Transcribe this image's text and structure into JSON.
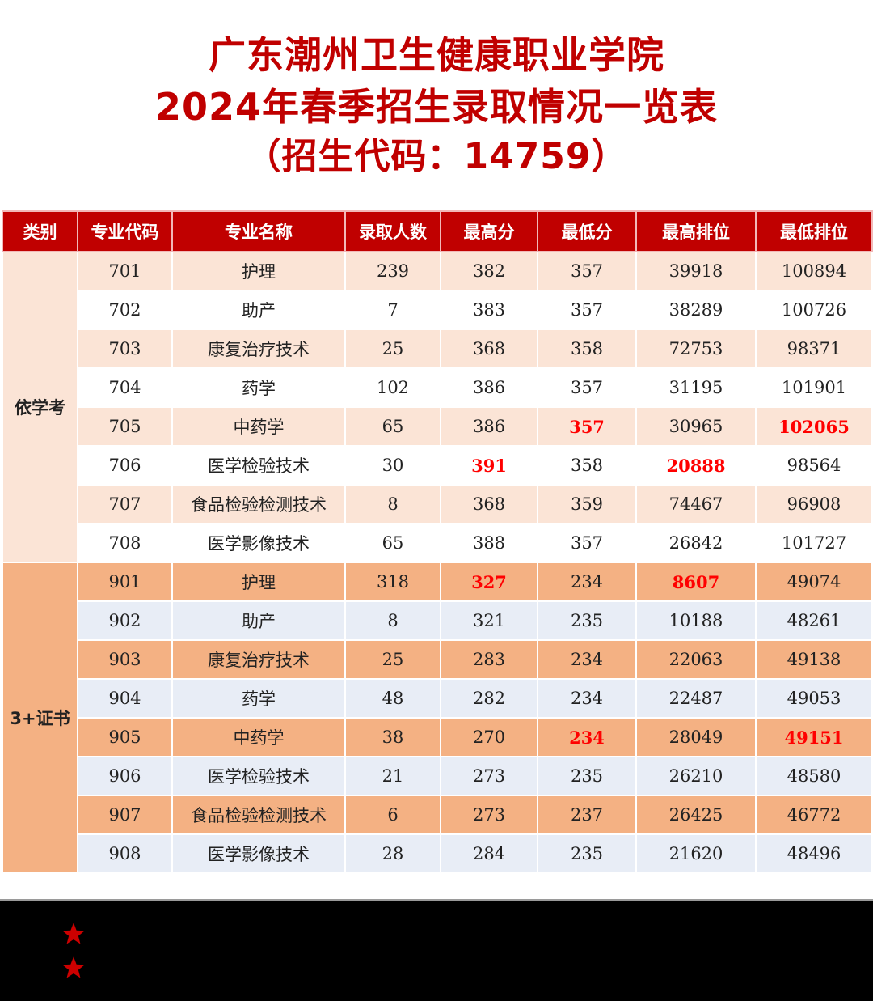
{
  "title": {
    "line1": "广东潮州卫生健康职业学院",
    "line2": "2024年春季招生录取情况一览表",
    "line3": "（招生代码：14759）"
  },
  "colors": {
    "title_red": "#c00000",
    "header_bg": "#c00000",
    "group1_odd": "#fbe4d6",
    "group1_even": "#ffffff",
    "group2_odd": "#f4b183",
    "group2_even": "#e8edf6",
    "highlight": "#ff0000",
    "footer_bg": "#000000",
    "star": "#cc0000"
  },
  "table": {
    "headers": [
      "类别",
      "专业代码",
      "专业名称",
      "录取人数",
      "最高分",
      "最低分",
      "最高排位",
      "最低排位"
    ],
    "groups": [
      {
        "category": "依学考",
        "rows": [
          {
            "code": "701",
            "name": "护理",
            "admitted": "239",
            "max_score": "382",
            "min_score": "357",
            "max_rank": "39918",
            "min_rank": "100894"
          },
          {
            "code": "702",
            "name": "助产",
            "admitted": "7",
            "max_score": "383",
            "min_score": "357",
            "max_rank": "38289",
            "min_rank": "100726"
          },
          {
            "code": "703",
            "name": "康复治疗技术",
            "admitted": "25",
            "max_score": "368",
            "min_score": "358",
            "max_rank": "72753",
            "min_rank": "98371"
          },
          {
            "code": "704",
            "name": "药学",
            "admitted": "102",
            "max_score": "386",
            "min_score": "357",
            "max_rank": "31195",
            "min_rank": "101901"
          },
          {
            "code": "705",
            "name": "中药学",
            "admitted": "65",
            "max_score": "386",
            "min_score": "357",
            "max_rank": "30965",
            "min_rank": "102065"
          },
          {
            "code": "706",
            "name": "医学检验技术",
            "admitted": "30",
            "max_score": "391",
            "min_score": "358",
            "max_rank": "20888",
            "min_rank": "98564"
          },
          {
            "code": "707",
            "name": "食品检验检测技术",
            "admitted": "8",
            "max_score": "368",
            "min_score": "359",
            "max_rank": "74467",
            "min_rank": "96908"
          },
          {
            "code": "708",
            "name": "医学影像技术",
            "admitted": "65",
            "max_score": "388",
            "min_score": "357",
            "max_rank": "26842",
            "min_rank": "101727"
          }
        ]
      },
      {
        "category": "3+证书",
        "rows": [
          {
            "code": "901",
            "name": "护理",
            "admitted": "318",
            "max_score": "327",
            "min_score": "234",
            "max_rank": "8607",
            "min_rank": "49074"
          },
          {
            "code": "902",
            "name": "助产",
            "admitted": "8",
            "max_score": "321",
            "min_score": "235",
            "max_rank": "10188",
            "min_rank": "48261"
          },
          {
            "code": "903",
            "name": "康复治疗技术",
            "admitted": "25",
            "max_score": "283",
            "min_score": "234",
            "max_rank": "22063",
            "min_rank": "49138"
          },
          {
            "code": "904",
            "name": "药学",
            "admitted": "48",
            "max_score": "282",
            "min_score": "234",
            "max_rank": "22487",
            "min_rank": "49053"
          },
          {
            "code": "905",
            "name": "中药学",
            "admitted": "38",
            "max_score": "270",
            "min_score": "234",
            "max_rank": "28049",
            "min_rank": "49151"
          },
          {
            "code": "906",
            "name": "医学检验技术",
            "admitted": "21",
            "max_score": "273",
            "min_score": "235",
            "max_rank": "26210",
            "min_rank": "48580"
          },
          {
            "code": "907",
            "name": "食品检验检测技术",
            "admitted": "6",
            "max_score": "273",
            "min_score": "237",
            "max_rank": "26425",
            "min_rank": "46772"
          },
          {
            "code": "908",
            "name": "医学影像技术",
            "admitted": "28",
            "max_score": "284",
            "min_score": "235",
            "max_rank": "21620",
            "min_rank": "48496"
          }
        ]
      }
    ],
    "highlighted_cells": [
      {
        "group": 0,
        "row": 4,
        "field": "min_score"
      },
      {
        "group": 0,
        "row": 4,
        "field": "min_rank"
      },
      {
        "group": 0,
        "row": 5,
        "field": "max_score"
      },
      {
        "group": 0,
        "row": 5,
        "field": "max_rank"
      },
      {
        "group": 1,
        "row": 0,
        "field": "max_score"
      },
      {
        "group": 1,
        "row": 0,
        "field": "max_rank"
      },
      {
        "group": 1,
        "row": 4,
        "field": "min_score"
      },
      {
        "group": 1,
        "row": 4,
        "field": "min_rank"
      }
    ]
  },
  "footer": {
    "icons": [
      "star-icon",
      "star-icon"
    ]
  }
}
